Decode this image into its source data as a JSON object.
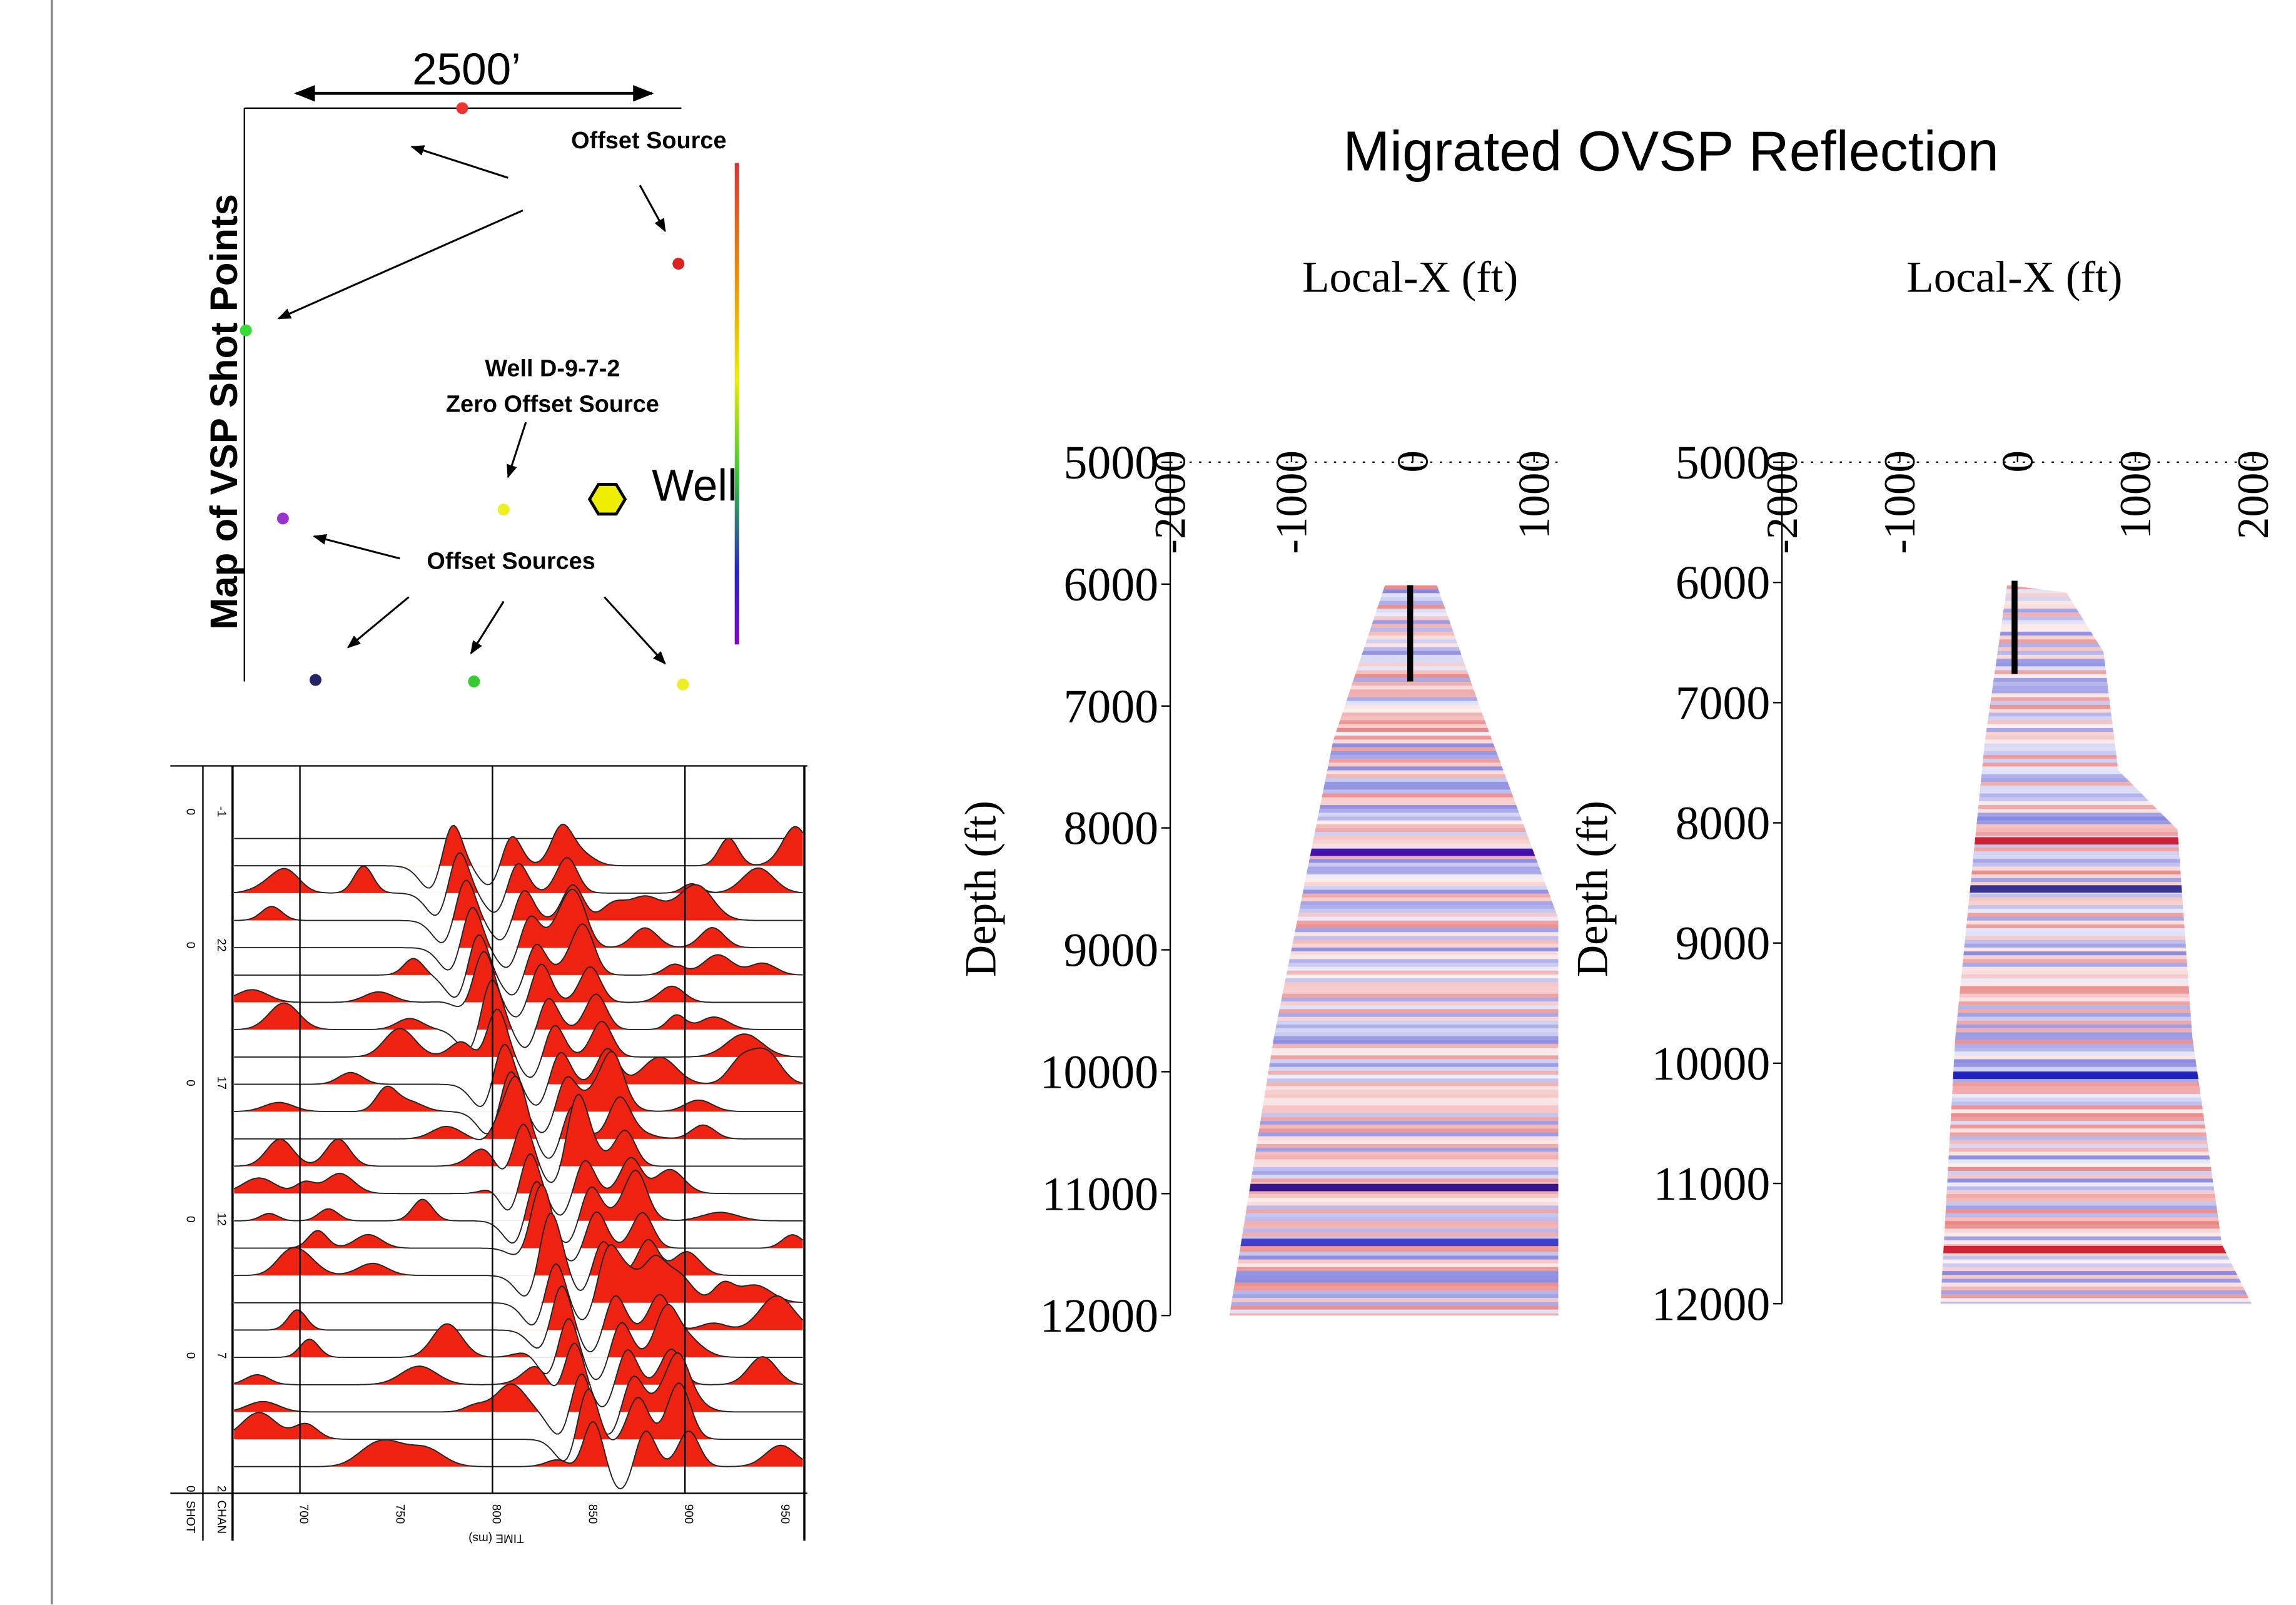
{
  "map": {
    "scale_label": "2500’",
    "title": "Map of VSP Shot Points",
    "offset_source": "Offset Source",
    "well_name": "Well D-9-7-2",
    "zero_offset": "Zero Offset Source",
    "well": "Well",
    "offset_sources": "Offset Sources"
  },
  "gather": {
    "xlim": [
      665,
      962
    ],
    "xticks": [
      700,
      750,
      800,
      850,
      900,
      950
    ],
    "gridlines": [
      700,
      800,
      900
    ],
    "xlabel": "TIME (ms)",
    "headers": [
      "SHOT",
      "CHAN"
    ],
    "rows": [
      [
        "0",
        "-1"
      ],
      [
        "0",
        "22"
      ],
      [
        "0",
        "17"
      ],
      [
        "0",
        "12"
      ],
      [
        "0",
        "7"
      ],
      [
        "0",
        "2"
      ]
    ]
  },
  "title": "Migrated OVSP Reflection",
  "panels": [
    {
      "xlabel": "Local-X (ft)",
      "ylabel": "Depth (ft)",
      "xlim": [
        -2000,
        1200
      ],
      "xticks": [
        -2000,
        -1000,
        0,
        1000
      ],
      "ylim": [
        5000,
        12000
      ],
      "yticks": [
        5000,
        6000,
        7000,
        8000,
        9000,
        10000,
        11000,
        12000
      ]
    },
    {
      "xlabel": "Local-X (ft)",
      "ylabel": "Depth (ft)",
      "xlim": [
        -2000,
        2050
      ],
      "xticks": [
        -2000,
        -1000,
        0,
        1000,
        2000
      ],
      "ylim": [
        5000,
        12000
      ],
      "yticks": [
        5000,
        6000,
        7000,
        8000,
        9000,
        10000,
        11000,
        12000
      ]
    }
  ]
}
